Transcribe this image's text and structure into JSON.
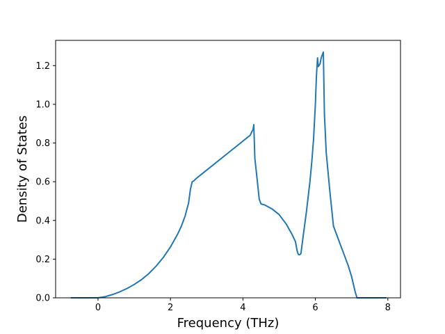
{
  "chart_data": {
    "type": "line",
    "title": "",
    "xlabel": "Frequency (THz)",
    "ylabel": "Density of States",
    "xlim": [
      -1.17,
      8.35
    ],
    "ylim": [
      0.0,
      1.3305
    ],
    "xticks": [
      0,
      2,
      4,
      6,
      8
    ],
    "xtick_labels": [
      "0",
      "2",
      "4",
      "6",
      "8"
    ],
    "yticks": [
      0.0,
      0.2,
      0.4,
      0.6,
      0.8,
      1.0,
      1.2
    ],
    "ytick_labels": [
      "0.0",
      "0.2",
      "0.4",
      "0.6",
      "0.8",
      "1.0",
      "1.2"
    ],
    "grid": false,
    "legend": "none",
    "series": [
      {
        "color": "#1f77b4",
        "x": [
          -0.74,
          -0.2,
          0.0,
          0.2,
          0.4,
          0.6,
          0.8,
          1.0,
          1.2,
          1.4,
          1.6,
          1.8,
          2.0,
          2.2,
          2.3,
          2.4,
          2.5,
          2.55,
          2.6,
          2.65,
          2.7,
          3.0,
          3.5,
          4.0,
          4.1,
          4.2,
          4.25,
          4.28,
          4.3,
          4.33,
          4.4,
          4.45,
          4.5,
          4.6,
          4.8,
          5.0,
          5.2,
          5.35,
          5.45,
          5.5,
          5.53,
          5.56,
          5.6,
          5.62,
          5.65,
          5.7,
          5.75,
          5.8,
          5.85,
          5.9,
          5.95,
          6.0,
          6.03,
          6.06,
          6.08,
          6.1,
          6.13,
          6.16,
          6.2,
          6.22,
          6.25,
          6.3,
          6.4,
          6.5,
          6.53,
          6.6,
          6.7,
          6.8,
          6.9,
          7.0,
          7.05,
          7.1,
          7.15,
          7.2,
          7.3,
          7.6,
          7.95
        ],
        "y": [
          0.0,
          0.0,
          0.0,
          0.006,
          0.017,
          0.031,
          0.048,
          0.069,
          0.094,
          0.125,
          0.163,
          0.208,
          0.263,
          0.33,
          0.37,
          0.42,
          0.49,
          0.56,
          0.6,
          0.605,
          0.615,
          0.66,
          0.735,
          0.81,
          0.825,
          0.84,
          0.86,
          0.87,
          0.895,
          0.72,
          0.6,
          0.51,
          0.485,
          0.48,
          0.46,
          0.43,
          0.38,
          0.33,
          0.29,
          0.24,
          0.225,
          0.222,
          0.228,
          0.255,
          0.3,
          0.37,
          0.44,
          0.52,
          0.6,
          0.7,
          0.82,
          1.0,
          1.15,
          1.24,
          1.195,
          1.2,
          1.21,
          1.24,
          1.26,
          1.27,
          0.95,
          0.75,
          0.55,
          0.37,
          0.355,
          0.32,
          0.27,
          0.22,
          0.17,
          0.11,
          0.07,
          0.03,
          0.0,
          0.0,
          0.0,
          0.0,
          0.0
        ]
      }
    ]
  }
}
